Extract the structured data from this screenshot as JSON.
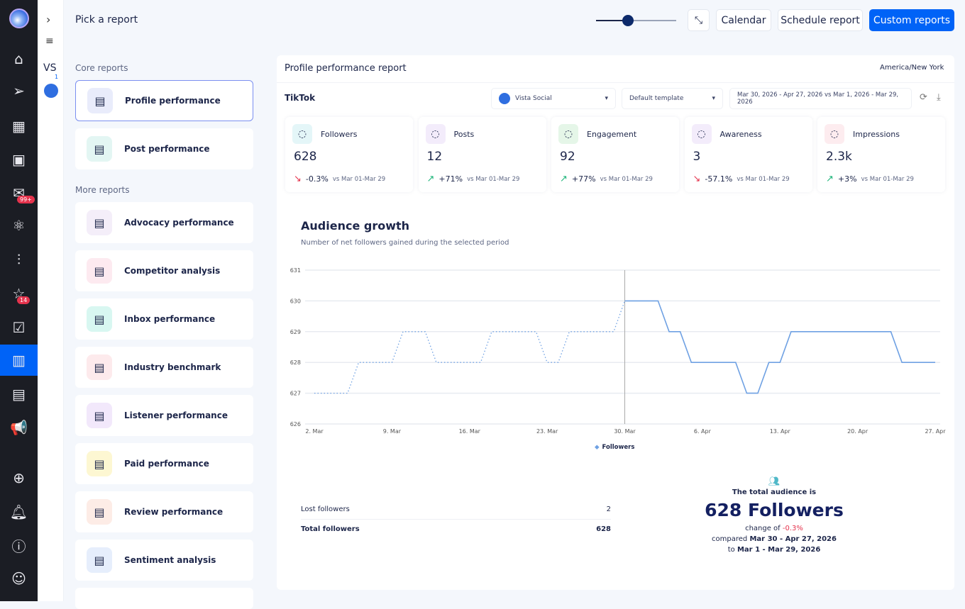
{
  "nav": {
    "items": [
      "home",
      "send",
      "calendar",
      "media",
      "inbox",
      "integrations",
      "listening",
      "reviews",
      "tasks",
      "reports",
      "layout",
      "ads"
    ],
    "inbox_badge": "99+",
    "reviews_badge": "14",
    "bottom": [
      "add",
      "bell",
      "help",
      "profile"
    ]
  },
  "col2": {
    "initials": "VS",
    "count": "1"
  },
  "header": {
    "title": "Pick a report",
    "slider_value": 0.38,
    "buttons": {
      "calendar": "Calendar",
      "schedule": "Schedule report",
      "custom": "Custom reports"
    },
    "accent": "#0063f7"
  },
  "reports": {
    "core_title": "Core reports",
    "core": [
      {
        "label": "Profile performance",
        "icon": "phone-chart-icon",
        "color": "#e9ecfb"
      },
      {
        "label": "Post performance",
        "icon": "document-icon",
        "color": "#e3f6f3"
      }
    ],
    "more_title": "More reports",
    "more": [
      {
        "label": "Advocacy performance",
        "icon": "megaphone-dollar-icon",
        "color": "#f4eef9"
      },
      {
        "label": "Competitor analysis",
        "icon": "phone-icon",
        "color": "#fdeaf0"
      },
      {
        "label": "Inbox performance",
        "icon": "smile-chat-icon",
        "color": "#d8f7f1"
      },
      {
        "label": "Industry benchmark",
        "icon": "bar-chart-icon",
        "color": "#fdeaec"
      },
      {
        "label": "Listener performance",
        "icon": "ear-icon",
        "color": "#f2e8fb"
      },
      {
        "label": "Paid performance",
        "icon": "paid-chart-icon",
        "color": "#fdf7d2"
      },
      {
        "label": "Review performance",
        "icon": "star-chat-icon",
        "color": "#fdece6"
      },
      {
        "label": "Sentiment analysis",
        "icon": "sliders-icon",
        "color": "#e6eefc"
      }
    ]
  },
  "report": {
    "title": "Profile performance report",
    "timezone": "America/New York",
    "network": "TikTok",
    "profile": "Vista Social",
    "template": "Default template",
    "range": "Mar 30, 2026 - Apr 27, 2026 vs Mar 1, 2026 - Mar 29, 2026",
    "kpis": [
      {
        "label": "Followers",
        "value": "628",
        "change": "-0.3%",
        "dir": "down",
        "vs": "vs Mar 01-Mar 29",
        "color": "#e4f6f8",
        "icon": "users-icon"
      },
      {
        "label": "Posts",
        "value": "12",
        "change": "+71%",
        "dir": "up",
        "vs": "vs Mar 01-Mar 29",
        "color": "#f3ecfb",
        "icon": "document-icon"
      },
      {
        "label": "Engagement",
        "value": "92",
        "change": "+77%",
        "dir": "up",
        "vs": "vs Mar 01-Mar 29",
        "color": "#e5f6e8",
        "icon": "thumbs-up-icon"
      },
      {
        "label": "Awareness",
        "value": "3",
        "change": "-57.1%",
        "dir": "down",
        "vs": "vs Mar 01-Mar 29",
        "color": "#f3ecfb",
        "icon": "megaphone-icon"
      },
      {
        "label": "Impressions",
        "value": "2.3k",
        "change": "+3%",
        "dir": "up",
        "vs": "vs Mar 01-Mar 29",
        "color": "#fdecef",
        "icon": "share-icon"
      }
    ]
  },
  "chart_data": {
    "type": "line",
    "title": "Audience growth",
    "subtitle": "Number of net followers gained during the selected period",
    "ylim": [
      626,
      631
    ],
    "yticks": [
      "626",
      "627",
      "628",
      "629",
      "630",
      "631"
    ],
    "xticks": [
      "2. Mar",
      "9. Mar",
      "16. Mar",
      "23. Mar",
      "30. Mar",
      "6. Apr",
      "13. Apr",
      "20. Apr",
      "27. Apr"
    ],
    "grid": true,
    "legend": "bottom",
    "series": [
      {
        "name": "Followers",
        "style": "solid",
        "color": "#6fa1e3",
        "start": "2026-03-30",
        "values": [
          630,
          630,
          630,
          630,
          629,
          629,
          628,
          628,
          628,
          628,
          628,
          627,
          627,
          628,
          628,
          629,
          629,
          629,
          629,
          629,
          629,
          629,
          629,
          629,
          629,
          628,
          628,
          628,
          628
        ]
      },
      {
        "style": "dotted",
        "color": "#6fa1e3",
        "start": "2026-03-02",
        "values": [
          627,
          627,
          627,
          627,
          628,
          628,
          628,
          628,
          629,
          629,
          629,
          628,
          628,
          628,
          628,
          628,
          629,
          629,
          629,
          629,
          629,
          628,
          628,
          629,
          629,
          629,
          629,
          629,
          630
        ]
      }
    ]
  },
  "summary": {
    "rows": [
      {
        "label": "Lost followers",
        "value": "2"
      },
      {
        "label": "Total followers",
        "value": "628"
      }
    ],
    "intro": "The total audience is",
    "big": "628 Followers",
    "change_label": "change of",
    "change": "-0.3%",
    "compared_label": "compared",
    "compared": "Mar 30 - Apr 27, 2026",
    "to_label": "to",
    "to": "Mar 1 - Mar 29, 2026"
  }
}
